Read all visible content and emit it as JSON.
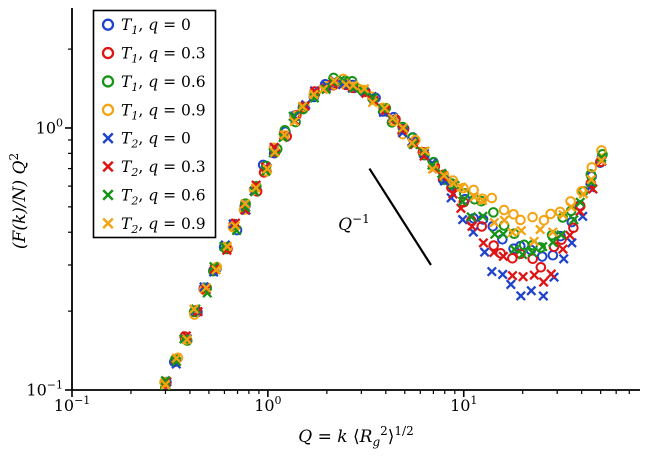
{
  "figure": {
    "background": "#ffffff",
    "axis_color": "#000000"
  },
  "chart_data": {
    "type": "scatter",
    "scale": "log-log",
    "title": "",
    "xlim": [
      0.1,
      79.4
    ],
    "ylim": [
      0.1,
      2.87
    ],
    "grid": false,
    "legend_position": "top-left",
    "axes": {
      "x_ticks": [
        {
          "v": 0.1,
          "base": "10",
          "exp": "−1"
        },
        {
          "v": 1,
          "base": "10",
          "exp": "0"
        },
        {
          "v": 10,
          "base": "10",
          "exp": "1"
        }
      ],
      "y_ticks": [
        {
          "v": 1,
          "base": "10",
          "exp": "0"
        },
        {
          "v": 0.1,
          "base": "10",
          "exp": "−1"
        }
      ],
      "ylabel_segments": [
        {
          "t": "(F(k)/N) Q",
          "i": true
        },
        {
          "t": "2",
          "sup": true
        }
      ],
      "xlabel_segments": [
        {
          "t": "Q",
          "i": true
        },
        {
          "t": " = ",
          "i": false
        },
        {
          "t": "k",
          "i": true
        },
        {
          "t": " ⟨",
          "i": false
        },
        {
          "t": "R",
          "i": true
        },
        {
          "t": "g",
          "i": true,
          "sub": true
        },
        {
          "t": "2",
          "sup": true
        },
        {
          "t": "⟩",
          "i": false
        },
        {
          "t": "1/2",
          "sup": true
        }
      ]
    },
    "annotation": {
      "line": {
        "x1": 3.3,
        "y1": 0.7,
        "x2": 6.8,
        "y2": 0.3
      },
      "label": {
        "x": 2.75,
        "y": 0.42,
        "segments": [
          {
            "t": "Q",
            "i": true
          },
          {
            "t": "−1",
            "sup": true
          }
        ]
      }
    },
    "x": [
      0.3,
      0.34,
      0.38,
      0.43,
      0.48,
      0.54,
      0.61,
      0.68,
      0.77,
      0.86,
      0.97,
      1.09,
      1.22,
      1.37,
      1.54,
      1.73,
      1.95,
      2.19,
      2.46,
      2.76,
      3.1,
      3.48,
      3.91,
      4.39,
      4.94,
      5.55,
      6.23,
      7.0,
      7.86,
      8.83,
      9.92,
      11.1,
      12.5,
      14.1,
      15.8,
      17.7,
      19.9,
      22.4,
      25.1,
      28.2,
      31.7,
      35.6,
      40.0,
      44.9,
      50.4
    ],
    "master_y": [
      0.105,
      0.13,
      0.16,
      0.2,
      0.24,
      0.29,
      0.35,
      0.42,
      0.5,
      0.59,
      0.7,
      0.82,
      0.95,
      1.08,
      1.22,
      1.34,
      1.44,
      1.5,
      1.5,
      1.46,
      1.38,
      1.28,
      1.18,
      1.08,
      0.98,
      0.89,
      0.8,
      0.72,
      0.65,
      0.59,
      0.53,
      0.48,
      0.44,
      0.4,
      0.37,
      0.345,
      0.33,
      0.325,
      0.33,
      0.35,
      0.39,
      0.45,
      0.53,
      0.63,
      0.76
    ],
    "dip_weight": [
      0,
      0,
      0,
      0,
      0,
      0,
      0,
      0,
      0,
      0,
      0,
      0,
      0,
      0,
      0,
      0,
      0,
      0,
      0,
      0,
      0,
      0,
      0,
      0,
      0,
      0,
      0,
      0,
      0,
      0.25,
      0.45,
      0.65,
      0.8,
      0.9,
      0.97,
      1,
      1,
      1,
      0.95,
      0.85,
      0.7,
      0.55,
      0.4,
      0.25,
      0.15
    ],
    "series": [
      {
        "name": "T1, q = 0",
        "marker": "circle",
        "color": "#1f43cc",
        "dip_factor": 1.0,
        "label": {
          "t": "T",
          "sub": "1",
          "mid": ", ",
          "q": "q",
          "eq": " = ",
          "val": "0"
        }
      },
      {
        "name": "T1, q = 0.3",
        "marker": "circle",
        "color": "#e01313",
        "dip_factor": 0.95,
        "label": {
          "t": "T",
          "sub": "1",
          "mid": ", ",
          "q": "q",
          "eq": " = ",
          "val": "0.3"
        }
      },
      {
        "name": "T1, q = 0.6",
        "marker": "circle",
        "color": "#169416",
        "dip_factor": 1.15,
        "label": {
          "t": "T",
          "sub": "1",
          "mid": ", ",
          "q": "q",
          "eq": " = ",
          "val": "0.6"
        }
      },
      {
        "name": "T1, q = 0.9",
        "marker": "circle",
        "color": "#f4a413",
        "dip_factor": 1.35,
        "label": {
          "t": "T",
          "sub": "1",
          "mid": ", ",
          "q": "q",
          "eq": " = ",
          "val": "0.9"
        }
      },
      {
        "name": "T2, q = 0",
        "marker": "x",
        "color": "#1f43cc",
        "dip_factor": 0.72,
        "label": {
          "t": "T",
          "sub": "2",
          "mid": ", ",
          "q": "q",
          "eq": " = ",
          "val": "0"
        }
      },
      {
        "name": "T2, q = 0.3",
        "marker": "x",
        "color": "#e01313",
        "dip_factor": 0.82,
        "label": {
          "t": "T",
          "sub": "2",
          "mid": ", ",
          "q": "q",
          "eq": " = ",
          "val": "0.3"
        }
      },
      {
        "name": "T2, q = 0.6",
        "marker": "x",
        "color": "#169416",
        "dip_factor": 1.0,
        "label": {
          "t": "T",
          "sub": "2",
          "mid": ", ",
          "q": "q",
          "eq": " = ",
          "val": "0.6"
        }
      },
      {
        "name": "T2, q = 0.9",
        "marker": "x",
        "color": "#f4a413",
        "dip_factor": 1.18,
        "label": {
          "t": "T",
          "sub": "2",
          "mid": ", ",
          "q": "q",
          "eq": " = ",
          "val": "0.9"
        }
      }
    ]
  }
}
